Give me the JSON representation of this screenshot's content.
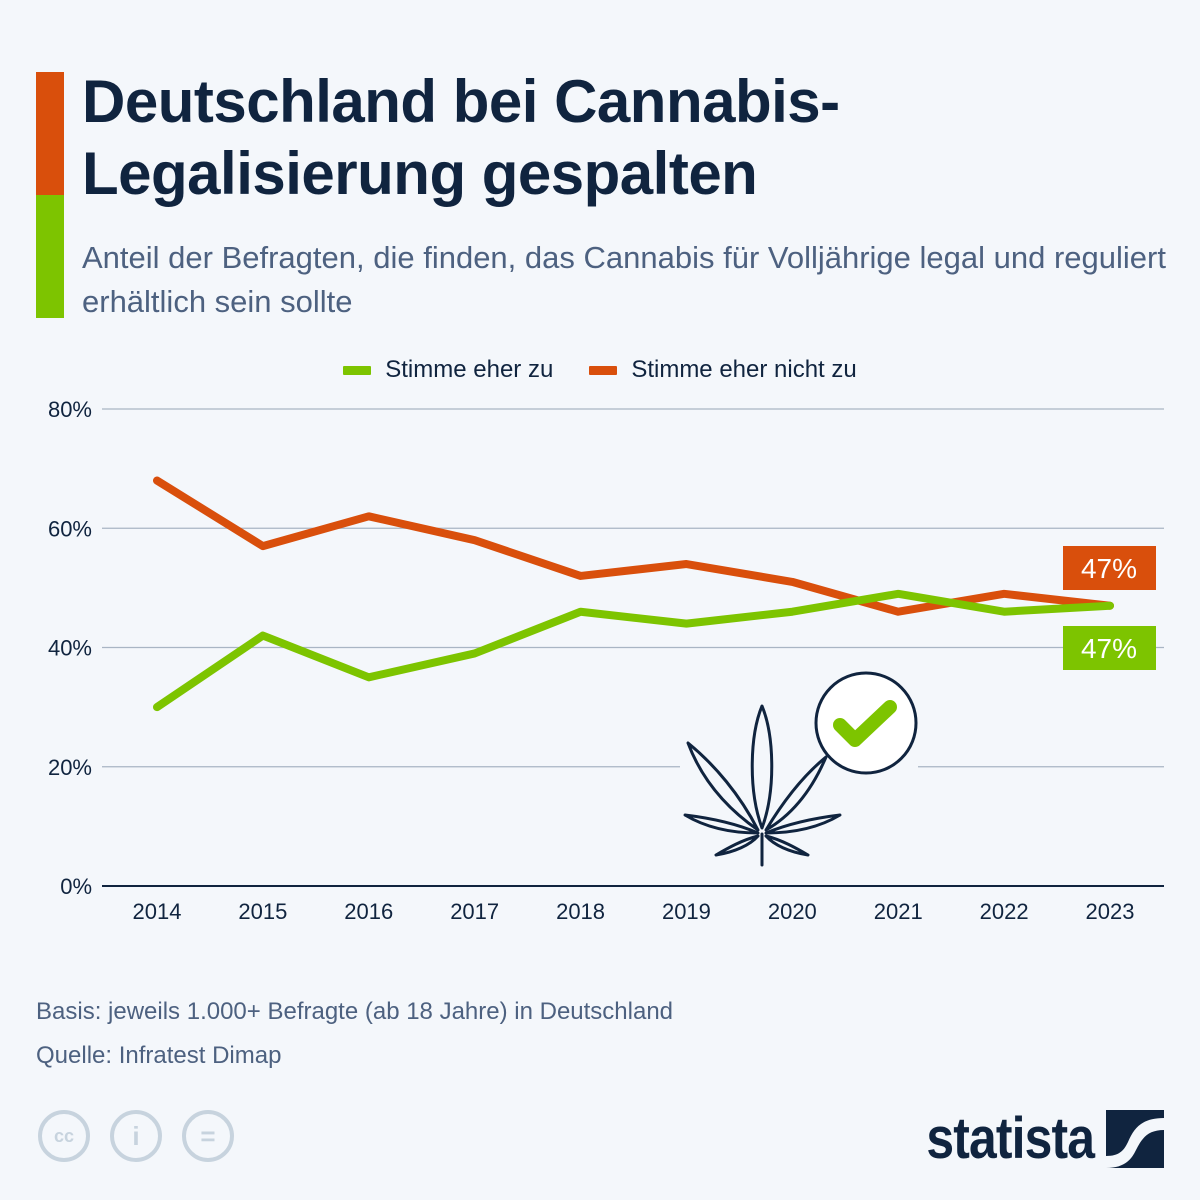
{
  "header": {
    "title": "Deutschland bei Cannabis-Legalisierung gespalten",
    "subtitle": "Anteil der Befragten, die finden, das Cannabis für Volljährige legal und reguliert erhältlich sein sollte"
  },
  "colors": {
    "agree": "#7dc400",
    "disagree": "#d94f0c",
    "text": "#10243f",
    "muted": "#4d6180",
    "grid": "#9aa8b8"
  },
  "chart_data": {
    "type": "line",
    "title": "Deutschland bei Cannabis-Legalisierung gespalten",
    "subtitle": "Anteil der Befragten, die finden, das Cannabis für Volljährige legal und reguliert erhältlich sein sollte",
    "xlabel": "",
    "ylabel": "",
    "categories": [
      "2014",
      "2015",
      "2016",
      "2017",
      "2018",
      "2019",
      "2020",
      "2021",
      "2022",
      "2023"
    ],
    "series": [
      {
        "name": "Stimme eher zu",
        "color": "#7dc400",
        "values": [
          30,
          42,
          35,
          39,
          46,
          44,
          46,
          49,
          46,
          47
        ],
        "end_label": "47%"
      },
      {
        "name": "Stimme eher nicht zu",
        "color": "#d94f0c",
        "values": [
          68,
          57,
          62,
          58,
          52,
          54,
          51,
          46,
          49,
          47
        ],
        "end_label": "47%"
      }
    ],
    "ylim": [
      0,
      80
    ],
    "yticks": [
      0,
      20,
      40,
      60,
      80
    ],
    "ytick_labels": [
      "0%",
      "20%",
      "40%",
      "60%",
      "80%"
    ],
    "grid": true,
    "legend": "top-center"
  },
  "footer": {
    "basis": "Basis: jeweils 1.000+ Befragte (ab 18 Jahre) in Deutschland",
    "source": "Quelle: Infratest Dimap"
  },
  "license_icons": [
    "cc-icon",
    "attribution-icon",
    "no-derivatives-icon"
  ],
  "license_glyphs": [
    "cc",
    "i",
    "="
  ],
  "brand": {
    "name": "statista"
  }
}
